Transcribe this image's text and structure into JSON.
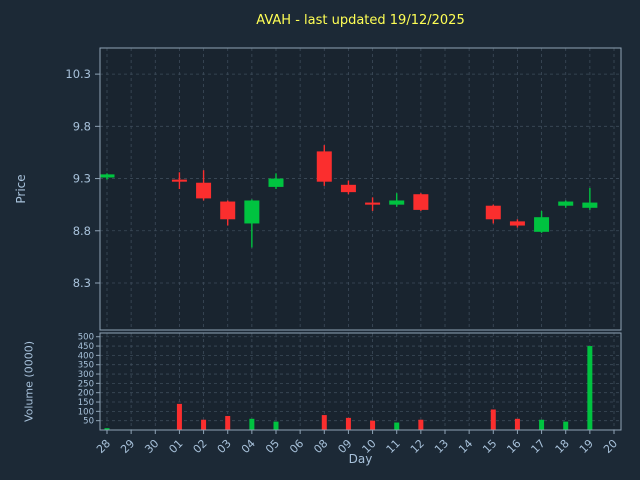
{
  "title": "AVAH - last updated 19/12/2025",
  "labels": {
    "price_axis": "Price",
    "volume_axis": "Volume (0000)",
    "x_axis": "Day"
  },
  "colors": {
    "background": "#1c2936",
    "axes_background": "#19242f",
    "grid": "#5a6b7d",
    "spine": "#8fa3b5",
    "text": "#a7c1da",
    "title": "#ffff55",
    "up": "#00c340",
    "down": "#fb2e2e"
  },
  "chart_data": {
    "type": "candlestick",
    "title": "AVAH - last updated 19/12/2025",
    "xlabel": "Day",
    "ylabel": "Price",
    "ylabel2": "Volume (0000)",
    "legend": "none",
    "grid": "dashed",
    "categories": [
      "28",
      "29",
      "30",
      "01",
      "02",
      "03",
      "04",
      "05",
      "06",
      "08",
      "09",
      "10",
      "11",
      "12",
      "13",
      "14",
      "15",
      "16",
      "17",
      "18",
      "19",
      "20"
    ],
    "price_ticks": [
      8.3,
      8.8,
      9.3,
      9.8,
      10.3
    ],
    "price_range": [
      7.85,
      10.55
    ],
    "volume_ticks": [
      50,
      100,
      150,
      200,
      250,
      300,
      350,
      400,
      450,
      500
    ],
    "volume_range": [
      0,
      520
    ],
    "candles": [
      {
        "day": "28",
        "open": 9.31,
        "high": 9.35,
        "low": 9.29,
        "close": 9.34,
        "volume": 10
      },
      {
        "day": "01",
        "open": 9.29,
        "high": 9.36,
        "low": 9.2,
        "close": 9.27,
        "volume": 140
      },
      {
        "day": "02",
        "open": 9.26,
        "high": 9.38,
        "low": 9.09,
        "close": 9.11,
        "volume": 55
      },
      {
        "day": "03",
        "open": 9.08,
        "high": 9.09,
        "low": 8.85,
        "close": 8.91,
        "volume": 75
      },
      {
        "day": "04",
        "open": 8.87,
        "high": 9.1,
        "low": 8.64,
        "close": 9.09,
        "volume": 60
      },
      {
        "day": "05",
        "open": 9.22,
        "high": 9.35,
        "low": 9.2,
        "close": 9.3,
        "volume": 45
      },
      {
        "day": "08",
        "open": 9.56,
        "high": 9.62,
        "low": 9.23,
        "close": 9.27,
        "volume": 80
      },
      {
        "day": "09",
        "open": 9.24,
        "high": 9.28,
        "low": 9.15,
        "close": 9.17,
        "volume": 65
      },
      {
        "day": "10",
        "open": 9.07,
        "high": 9.12,
        "low": 8.99,
        "close": 9.05,
        "volume": 50
      },
      {
        "day": "11",
        "open": 9.05,
        "high": 9.16,
        "low": 9.03,
        "close": 9.09,
        "volume": 40
      },
      {
        "day": "12",
        "open": 9.15,
        "high": 9.16,
        "low": 8.99,
        "close": 9.0,
        "volume": 55
      },
      {
        "day": "15",
        "open": 9.04,
        "high": 9.05,
        "low": 8.87,
        "close": 8.91,
        "volume": 110
      },
      {
        "day": "16",
        "open": 8.89,
        "high": 8.91,
        "low": 8.83,
        "close": 8.85,
        "volume": 60
      },
      {
        "day": "17",
        "open": 8.79,
        "high": 8.99,
        "low": 8.78,
        "close": 8.93,
        "volume": 55
      },
      {
        "day": "18",
        "open": 9.04,
        "high": 9.09,
        "low": 9.02,
        "close": 9.08,
        "volume": 45
      },
      {
        "day": "19",
        "open": 9.02,
        "high": 9.21,
        "low": 9.0,
        "close": 9.07,
        "volume": 450
      }
    ]
  }
}
